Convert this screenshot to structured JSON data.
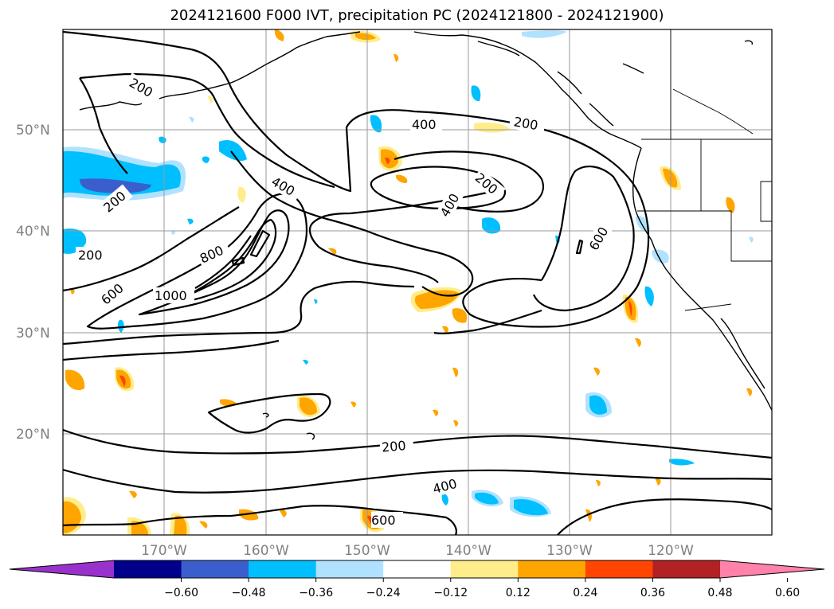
{
  "title": "2024121600 F000 IVT, precipitation PC (2024121800 - 2024121900)",
  "lat_labels": [
    "50°N",
    "40°N",
    "30°N",
    "20°N"
  ],
  "lon_labels": [
    "170°W",
    "160°W",
    "150°W",
    "140°W",
    "130°W",
    "120°W"
  ],
  "contour_labels": [
    "200",
    "200",
    "200",
    "200",
    "200",
    "400",
    "400",
    "400",
    "400",
    "600",
    "600",
    "800",
    "1000",
    "200",
    "400",
    "600"
  ],
  "colorbar": {
    "tick_labels": [
      "−0.60",
      "−0.48",
      "−0.36",
      "−0.24",
      "−0.12",
      "0.12",
      "0.24",
      "0.36",
      "0.48",
      "0.60"
    ],
    "colors": [
      "#9932cc",
      "#00008b",
      "#3a5fcd",
      "#00bfff",
      "#b0e2ff",
      "#ffffff",
      "#ffec8b",
      "#ffa500",
      "#ff4500",
      "#b22222",
      "#ff82ab"
    ]
  }
}
